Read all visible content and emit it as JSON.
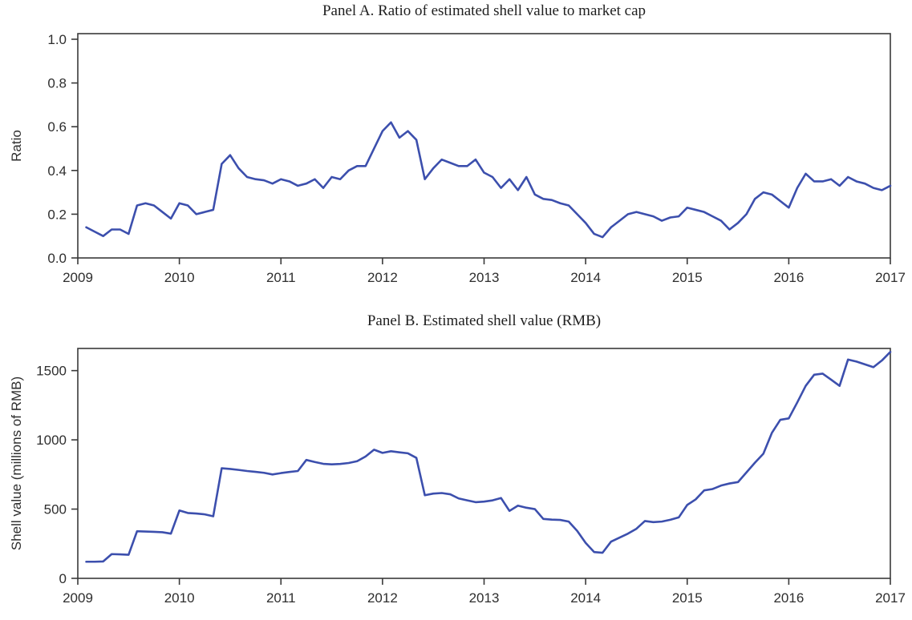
{
  "figure": {
    "background": "#ffffff",
    "line_color": "#3c4fad",
    "axis_color": "#3a3a3a",
    "text_color": "#2e2e2e"
  },
  "chart_data": [
    {
      "type": "line",
      "title": "Panel A. Ratio of estimated shell value to market cap",
      "xlabel": "",
      "ylabel": "Ratio",
      "x_tick_labels": [
        "2009",
        "2010",
        "2011",
        "2012",
        "2013",
        "2014",
        "2015",
        "2016",
        "2017"
      ],
      "y_tick_labels": [
        "0.0",
        "0.2",
        "0.4",
        "0.6",
        "0.8",
        "1.0"
      ],
      "y_tick_values": [
        0,
        0.2,
        0.4,
        0.6,
        0.8,
        1.0
      ],
      "xlim": [
        2009,
        2017
      ],
      "ylim": [
        0,
        1.0
      ],
      "grid": false,
      "legend": "none",
      "series_name": "Ratio of estimated shell value to market cap",
      "x_monthly_start": "2009-02",
      "x_monthly_end": "2017-01",
      "values": [
        0.14,
        0.12,
        0.1,
        0.13,
        0.13,
        0.11,
        0.24,
        0.25,
        0.24,
        0.21,
        0.18,
        0.25,
        0.24,
        0.2,
        0.21,
        0.22,
        0.43,
        0.47,
        0.41,
        0.37,
        0.36,
        0.355,
        0.34,
        0.36,
        0.35,
        0.33,
        0.34,
        0.36,
        0.32,
        0.37,
        0.36,
        0.4,
        0.42,
        0.42,
        0.5,
        0.58,
        0.62,
        0.55,
        0.58,
        0.54,
        0.36,
        0.41,
        0.45,
        0.435,
        0.42,
        0.42,
        0.45,
        0.39,
        0.37,
        0.32,
        0.36,
        0.31,
        0.37,
        0.29,
        0.27,
        0.265,
        0.25,
        0.24,
        0.2,
        0.16,
        0.11,
        0.095,
        0.14,
        0.17,
        0.2,
        0.21,
        0.2,
        0.19,
        0.17,
        0.185,
        0.19,
        0.23,
        0.22,
        0.21,
        0.19,
        0.17,
        0.13,
        0.16,
        0.2,
        0.27,
        0.3,
        0.29,
        0.26,
        0.23,
        0.32,
        0.385,
        0.35,
        0.35,
        0.36,
        0.33,
        0.37,
        0.35,
        0.34,
        0.32,
        0.31,
        0.33
      ]
    },
    {
      "type": "line",
      "title": "Panel B. Estimated shell value (RMB)",
      "xlabel": "",
      "ylabel": "Shell value (millions of RMB)",
      "x_tick_labels": [
        "2009",
        "2010",
        "2011",
        "2012",
        "2013",
        "2014",
        "2015",
        "2016",
        "2017"
      ],
      "y_tick_labels": [
        "0",
        "500",
        "1000",
        "1500"
      ],
      "y_tick_values": [
        0,
        500,
        1000,
        1500
      ],
      "xlim": [
        2009,
        2017
      ],
      "ylim": [
        0,
        1660
      ],
      "grid": false,
      "legend": "none",
      "series_name": "Estimated shell value (millions of RMB)",
      "x_monthly_start": "2009-02",
      "x_monthly_end": "2017-01",
      "values": [
        120,
        120,
        122,
        175,
        173,
        170,
        340,
        338,
        336,
        333,
        323,
        490,
        472,
        468,
        462,
        448,
        795,
        790,
        783,
        775,
        769,
        762,
        750,
        760,
        768,
        775,
        855,
        840,
        827,
        823,
        826,
        833,
        846,
        880,
        929,
        906,
        918,
        910,
        903,
        870,
        600,
        612,
        616,
        607,
        577,
        563,
        550,
        554,
        563,
        580,
        487,
        525,
        510,
        500,
        429,
        424,
        422,
        410,
        343,
        256,
        190,
        185,
        265,
        294,
        323,
        358,
        414,
        406,
        410,
        423,
        440,
        530,
        570,
        635,
        645,
        670,
        685,
        695,
        765,
        835,
        900,
        1050,
        1145,
        1155,
        1270,
        1390,
        1470,
        1478,
        1435,
        1390,
        1580,
        1565,
        1545,
        1525,
        1573,
        1635
      ]
    }
  ]
}
